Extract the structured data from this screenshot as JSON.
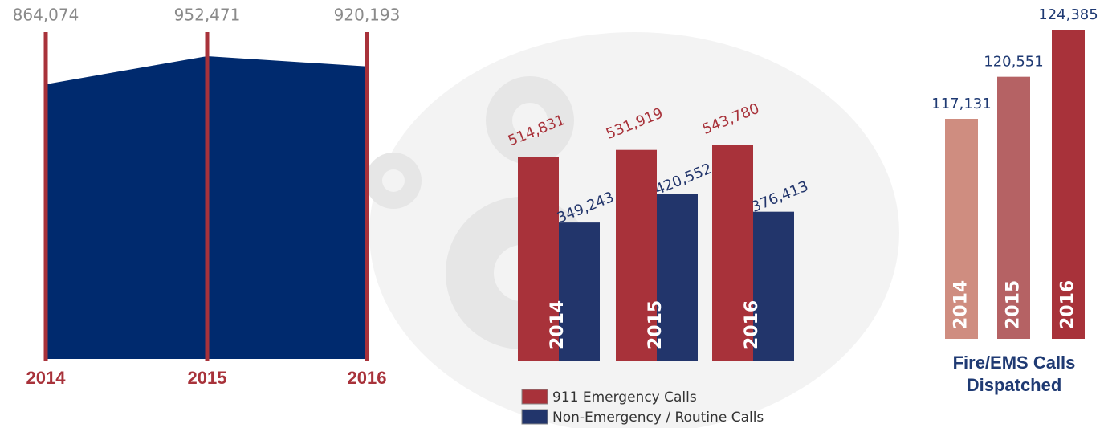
{
  "chart_data": [
    {
      "type": "area",
      "categories": [
        "2014",
        "2015",
        "2016"
      ],
      "values": [
        864074,
        952471,
        920193
      ],
      "value_labels": [
        "864,074",
        "952,471",
        "920,193"
      ],
      "color": "#002a6e",
      "line_color": "#a8323a"
    },
    {
      "type": "grouped_bar",
      "categories": [
        "2014",
        "2015",
        "2016"
      ],
      "series": [
        {
          "name": "911 Emergency Calls",
          "color": "#a8323a",
          "values": [
            514831,
            531919,
            543780
          ],
          "value_labels": [
            "514,831",
            "531,919",
            "543,780"
          ]
        },
        {
          "name": "Non-Emergency / Routine Calls",
          "color": "#22356b",
          "values": [
            349243,
            420552,
            376413
          ],
          "value_labels": [
            "349,243",
            "420,552",
            "376,413"
          ]
        }
      ]
    },
    {
      "type": "bar",
      "title": "Fire/EMS Calls Dispatched",
      "categories": [
        "2014",
        "2015",
        "2016"
      ],
      "values": [
        117131,
        120551,
        124385
      ],
      "value_labels": [
        "117,131",
        "120,551",
        "124,385"
      ],
      "colors": [
        "#cf8d80",
        "#b56264",
        "#a8323a"
      ]
    }
  ]
}
